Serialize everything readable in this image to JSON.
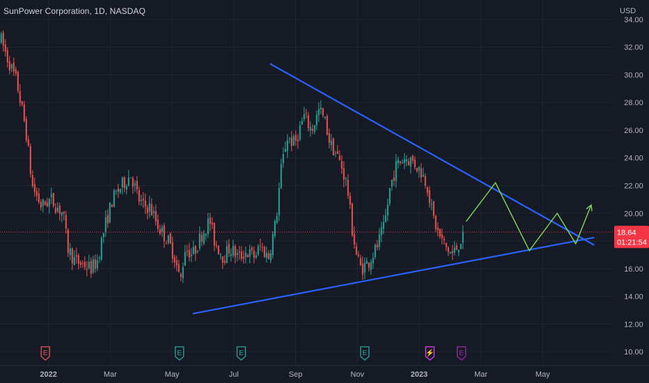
{
  "header": {
    "title": "SunPower Corporation, 1D, NASDAQ",
    "currency": "USD"
  },
  "price_tag": {
    "price": "18.64",
    "countdown": "01:21:54",
    "color": "#f23645"
  },
  "colors": {
    "up": "#26a69a",
    "down": "#ef5350",
    "trend": "#2962ff",
    "projection": "#7ed957"
  },
  "chart_data": {
    "type": "candlestick",
    "y_axis": {
      "range": [
        9.0,
        35.4
      ],
      "ticks": [
        "34.00",
        "32.00",
        "30.00",
        "28.00",
        "26.00",
        "24.00",
        "22.00",
        "20.00",
        "18.00",
        "16.00",
        "14.00",
        "12.00",
        "10.00"
      ]
    },
    "x_axis": {
      "ticks": [
        {
          "label": "2022",
          "pos": 0.73,
          "bold": true
        },
        {
          "label": "Mar",
          "pos": 2.73
        },
        {
          "label": "May",
          "pos": 4.73
        },
        {
          "label": "Jul",
          "pos": 6.73
        },
        {
          "label": "Sep",
          "pos": 8.73
        },
        {
          "label": "Nov",
          "pos": 10.73
        },
        {
          "label": "2023",
          "pos": 12.73,
          "bold": true
        },
        {
          "label": "Mar",
          "pos": 14.73
        },
        {
          "label": "May",
          "pos": 16.73
        }
      ],
      "range": [
        -0.84,
        19.0
      ]
    },
    "last_price": 18.64,
    "anchors": [
      [
        -0.8,
        32.5
      ],
      [
        -0.6,
        31.2
      ],
      [
        -0.3,
        29.5
      ],
      [
        0.0,
        26.0
      ],
      [
        0.2,
        22.0
      ],
      [
        0.5,
        20.5
      ],
      [
        0.8,
        21.0
      ],
      [
        1.2,
        20.0
      ],
      [
        1.35,
        17.5
      ],
      [
        1.6,
        16.5
      ],
      [
        1.9,
        16.3
      ],
      [
        2.1,
        16.0
      ],
      [
        2.3,
        16.5
      ],
      [
        2.55,
        19.0
      ],
      [
        2.8,
        21.0
      ],
      [
        3.1,
        22.0
      ],
      [
        3.4,
        22.8
      ],
      [
        3.65,
        21.0
      ],
      [
        3.8,
        20.5
      ],
      [
        4.0,
        20.5
      ],
      [
        4.3,
        19.0
      ],
      [
        4.6,
        18.0
      ],
      [
        4.8,
        17.0
      ],
      [
        5.0,
        15.0
      ],
      [
        5.15,
        17.5
      ],
      [
        5.4,
        17.0
      ],
      [
        5.7,
        18.5
      ],
      [
        5.95,
        19.5
      ],
      [
        6.1,
        18.0
      ],
      [
        6.4,
        16.8
      ],
      [
        6.6,
        17.5
      ],
      [
        6.9,
        16.8
      ],
      [
        7.1,
        17.2
      ],
      [
        7.4,
        16.9
      ],
      [
        7.6,
        17.6
      ],
      [
        7.85,
        16.8
      ],
      [
        8.1,
        19.5
      ],
      [
        8.25,
        23.0
      ],
      [
        8.45,
        25.5
      ],
      [
        8.7,
        25.0
      ],
      [
        9.0,
        27.0
      ],
      [
        9.25,
        26.0
      ],
      [
        9.5,
        27.5
      ],
      [
        9.7,
        26.5
      ],
      [
        9.85,
        25.0
      ],
      [
        10.0,
        24.5
      ],
      [
        10.2,
        23.5
      ],
      [
        10.4,
        22.0
      ],
      [
        10.55,
        19.0
      ],
      [
        10.7,
        17.0
      ],
      [
        10.85,
        16.0
      ],
      [
        11.1,
        16.5
      ],
      [
        11.35,
        17.5
      ],
      [
        11.6,
        19.0
      ],
      [
        11.8,
        22.0
      ],
      [
        12.0,
        23.5
      ],
      [
        12.25,
        24.0
      ],
      [
        12.5,
        23.8
      ],
      [
        12.8,
        23.0
      ],
      [
        13.0,
        22.0
      ],
      [
        13.15,
        20.0
      ],
      [
        13.35,
        18.5
      ],
      [
        13.6,
        17.5
      ],
      [
        13.8,
        17.0
      ],
      [
        13.95,
        17.5
      ],
      [
        14.2,
        18.7
      ]
    ],
    "trendlines": [
      {
        "name": "upper",
        "from": [
          7.9,
          30.8
        ],
        "to": [
          18.4,
          17.7
        ]
      },
      {
        "name": "lower",
        "from": [
          5.4,
          12.75
        ],
        "to": [
          18.4,
          18.25
        ]
      }
    ],
    "projection": [
      [
        14.25,
        19.4
      ],
      [
        15.2,
        22.2
      ],
      [
        16.3,
        17.3
      ],
      [
        17.2,
        20.0
      ],
      [
        17.8,
        17.8
      ],
      [
        18.3,
        20.6
      ]
    ],
    "projection_arrow_head": [
      18.3,
      20.6
    ],
    "events": [
      {
        "label": "E",
        "pos": 0.63,
        "color": "#ef5350"
      },
      {
        "label": "E",
        "pos": 4.97,
        "color": "#26a69a"
      },
      {
        "label": "E",
        "pos": 6.97,
        "color": "#26a69a"
      },
      {
        "label": "E",
        "pos": 10.97,
        "color": "#26a69a"
      },
      {
        "label": "⚡",
        "pos": 13.08,
        "color": "#e040fb"
      },
      {
        "label": "E",
        "pos": 14.1,
        "color": "#9c27b0"
      }
    ]
  }
}
